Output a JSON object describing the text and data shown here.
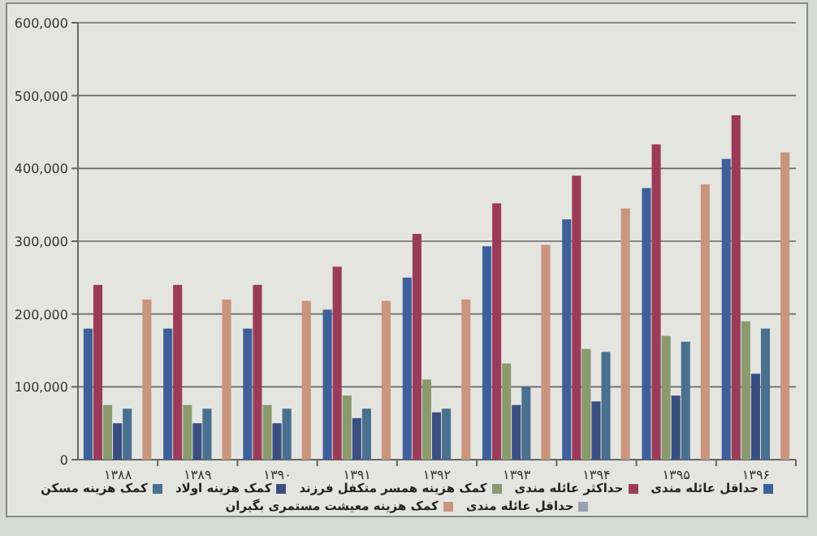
{
  "chart_data": {
    "type": "bar",
    "categories": [
      "۱۳۸۸",
      "۱۳۸۹",
      "۱۳۹۰",
      "۱۳۹۱",
      "۱۳۹۲",
      "۱۳۹۳",
      "۱۳۹۴",
      "۱۳۹۵",
      "۱۳۹۶"
    ],
    "series": [
      {
        "name": "حداقل عائله مندی",
        "color": "#3f5f9a",
        "values": [
          180000,
          180000,
          180000,
          206000,
          250000,
          293000,
          330000,
          373000,
          413000
        ]
      },
      {
        "name": "حداکثر عائله مندی",
        "color": "#9b3b5a",
        "values": [
          240000,
          240000,
          240000,
          265000,
          310000,
          352000,
          390000,
          433000,
          473000
        ]
      },
      {
        "name": "کمک هزینه همسر متکفل فرزند",
        "color": "#8a9a6e",
        "values": [
          75000,
          75000,
          75000,
          88000,
          110000,
          132000,
          152000,
          170000,
          190000
        ]
      },
      {
        "name": "کمک هزینه اولاد",
        "color": "#3a4f80",
        "values": [
          50000,
          50000,
          50000,
          57000,
          65000,
          75000,
          80000,
          88000,
          118000
        ]
      },
      {
        "name": "کمک هزینه مسکن",
        "color": "#4a7090",
        "values": [
          70000,
          70000,
          70000,
          70000,
          70000,
          100000,
          148000,
          162000,
          180000
        ]
      },
      {
        "name": "حداقل عائله مندی",
        "color": "#9aa0b0",
        "values": [
          null,
          null,
          null,
          null,
          null,
          null,
          null,
          null,
          null
        ]
      },
      {
        "name": "کمک هزینه معیشت مستمری بگیران",
        "color": "#c9957e",
        "values": [
          220000,
          220000,
          218000,
          218000,
          220000,
          295000,
          345000,
          378000,
          422000
        ]
      }
    ],
    "ylim": [
      0,
      600000
    ],
    "yticks": [
      0,
      {
        "value": 100000,
        "label": "100,000"
      },
      {
        "value": 200000,
        "label": "200,000"
      },
      {
        "value": 300000,
        "label": "300,000"
      },
      {
        "value": 400000,
        "label": "400,000"
      },
      {
        "value": 500000,
        "label": "500,000"
      },
      {
        "value": 600000,
        "label": "600,000"
      }
    ],
    "grid": "y",
    "legend": "bottom"
  }
}
